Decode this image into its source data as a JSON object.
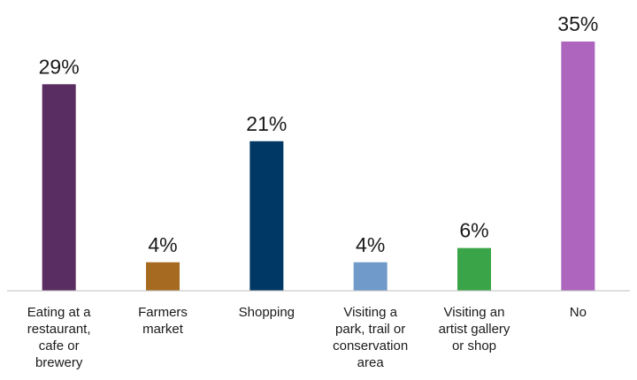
{
  "chart_data": {
    "type": "bar",
    "categories": [
      "Eating at a\nrestaurant,\ncafe or\nbrewery",
      "Farmers\nmarket",
      "Shopping",
      "Visiting a\npark, trail or\nconservation\narea",
      "Visiting an\nartist gallery\nor shop",
      "No"
    ],
    "values": [
      29,
      4,
      21,
      4,
      6,
      35
    ],
    "data_labels": [
      "29%",
      "4%",
      "21%",
      "4%",
      "6%",
      "35%"
    ],
    "colors": [
      "#5a2d62",
      "#a66b21",
      "#003865",
      "#6f9ac9",
      "#3aa548",
      "#ad65be"
    ],
    "title": "",
    "xlabel": "",
    "ylabel": "",
    "ylim": [
      0,
      35
    ],
    "grid": false,
    "legend": "none"
  }
}
